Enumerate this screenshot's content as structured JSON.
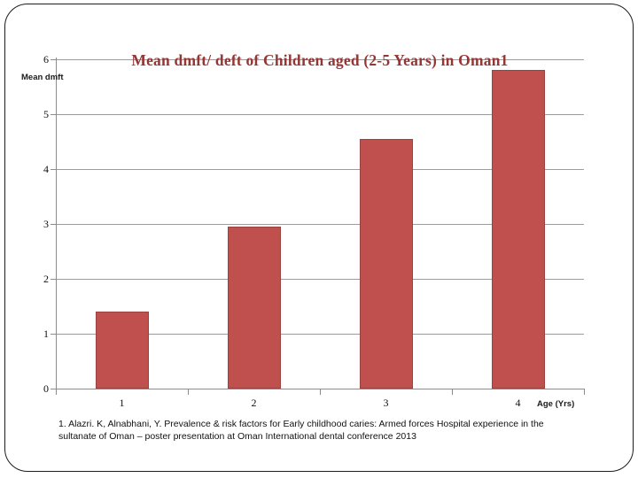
{
  "slide": {
    "title": "Mean dmft/ deft of Children aged (2-5 Years) in Oman1",
    "y_axis_label": "Mean dmft",
    "x_axis_label": "Age (Yrs)",
    "footnote": {
      "lines": [
        "1. Alazri. K, Alnabhani, Y. Prevalence & risk factors for Early childhood caries: Armed forces Hospital experience in the",
        "sultanate of Oman – poster presentation at Oman International dental conference 2013"
      ]
    }
  },
  "chart_data": {
    "type": "bar",
    "title": "Mean dmft/ deft of Children aged (2-5 Years) in Oman1",
    "categories": [
      "1",
      "2",
      "3",
      "4"
    ],
    "values": [
      1.4,
      2.95,
      4.55,
      5.8
    ],
    "xlabel": "Age (Yrs)",
    "ylabel": "Mean dmft",
    "ylim": [
      0,
      6
    ],
    "yticks": [
      0,
      1,
      2,
      3,
      4,
      5,
      6
    ],
    "grid": true,
    "legend_position": "none",
    "colors": {
      "bar_fill": "#C0504D",
      "bar_border": "#9A423F",
      "gridline": "#9C9C9C",
      "axis": "#8C8C8C",
      "title_text": "#943634",
      "text": "#1A1A1A"
    }
  }
}
